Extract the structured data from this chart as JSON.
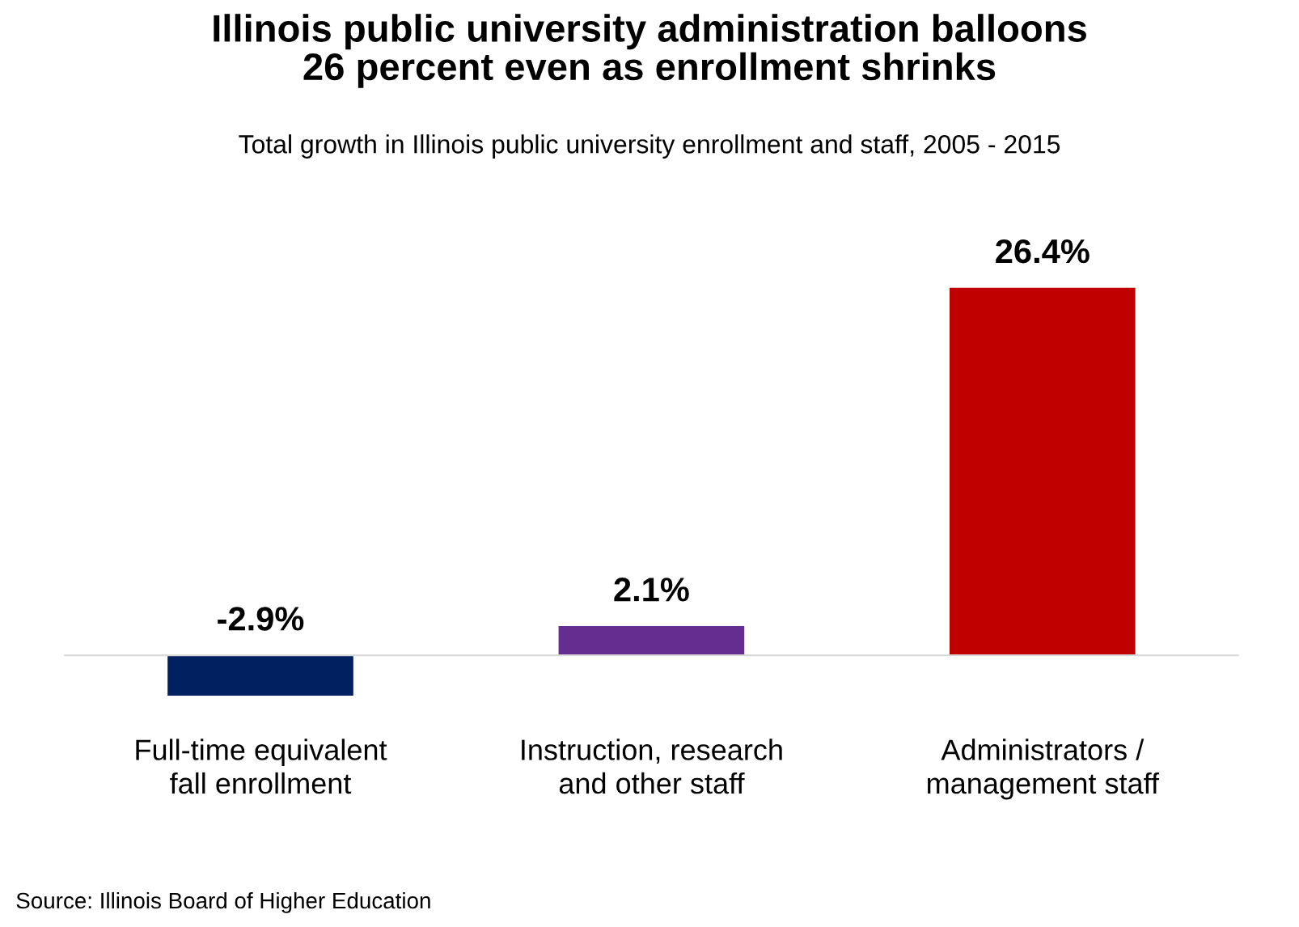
{
  "chart_data": {
    "type": "bar",
    "title": "Illinois public university administration balloons\n26 percent even as enrollment shrinks",
    "subtitle": "Total growth in Illinois public university enrollment and staff, 2005 - 2015",
    "categories": [
      "Full-time equivalent fall enrollment",
      "Instruction, research and other staff",
      "Administrators / management staff"
    ],
    "values": [
      -2.9,
      2.1,
      26.4
    ],
    "colors": [
      "#002060",
      "#662d91",
      "#c00000"
    ],
    "value_labels": [
      "-2.9%",
      "2.1%",
      "26.4%"
    ],
    "annotations": [
      "Source: Illinois Board of Higher Education"
    ]
  }
}
